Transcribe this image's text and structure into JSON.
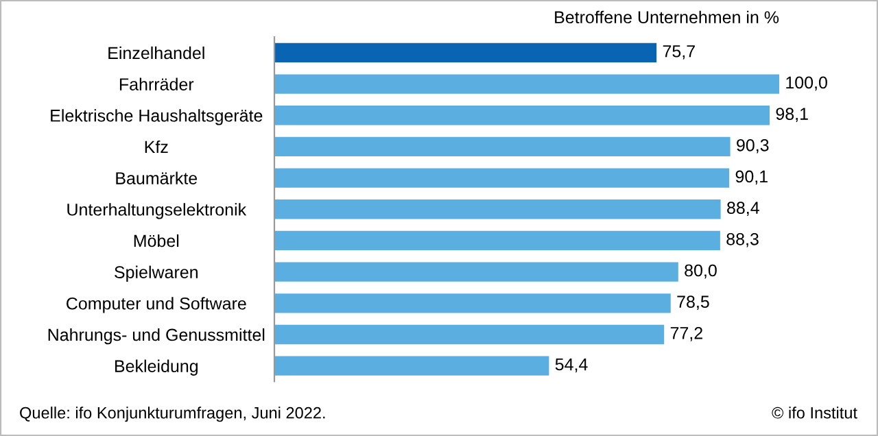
{
  "chart_data": {
    "type": "bar",
    "orientation": "horizontal",
    "title": "Betroffene Unternehmen in %",
    "categories": [
      "Einzelhandel",
      "Fahrräder",
      "Elektrische Haushaltsgeräte",
      "Kfz",
      "Baumärkte",
      "Unterhaltungselektronik",
      "Möbel",
      "Spielwaren",
      "Computer und Software",
      "Nahrungs- und Genussmittel",
      "Bekleidung"
    ],
    "values": [
      75.7,
      100.0,
      98.1,
      90.3,
      90.1,
      88.4,
      88.3,
      80.0,
      78.5,
      77.2,
      54.4
    ],
    "colors": [
      "#0a64b4",
      "#5aaee0",
      "#5aaee0",
      "#5aaee0",
      "#5aaee0",
      "#5aaee0",
      "#5aaee0",
      "#5aaee0",
      "#5aaee0",
      "#5aaee0",
      "#5aaee0"
    ],
    "value_labels": [
      "75,7",
      "100,0",
      "98,1",
      "90,3",
      "90,1",
      "88,4",
      "88,3",
      "80,0",
      "78,5",
      "77,2",
      "54,4"
    ],
    "tick_labels": "y",
    "grid": false,
    "legend": false,
    "annotations": [
      "Quelle: ifo Konjunkturumfragen, Juni 2022.",
      "© ifo Institut"
    ]
  }
}
